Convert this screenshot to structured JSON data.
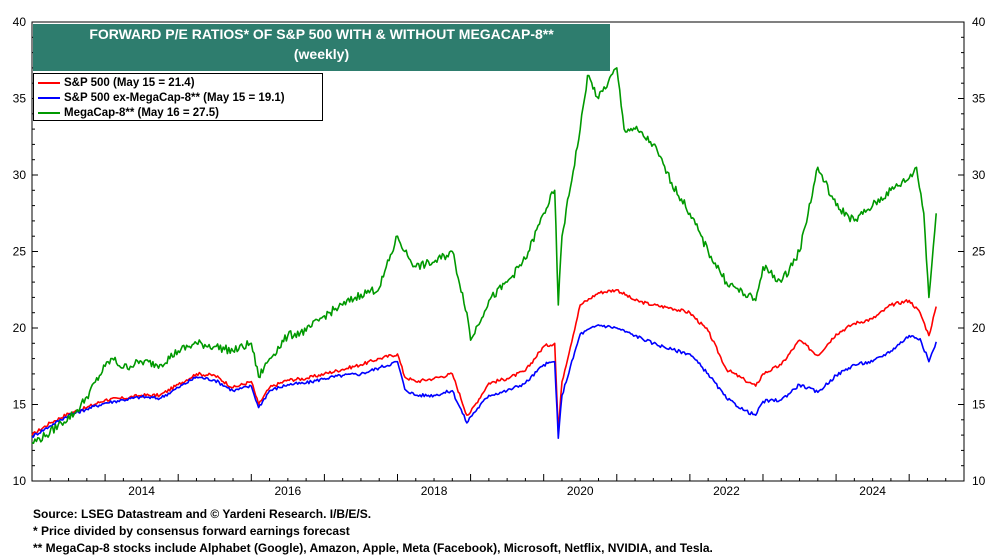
{
  "chart_data": {
    "type": "line",
    "title": "FORWARD P/E RATIOS* OF S&P 500 WITH & WITHOUT  MEGACAP-8**",
    "subtitle": "(weekly)",
    "xlabel": "",
    "ylabel": "",
    "xlim": [
      2013.0,
      2025.75
    ],
    "ylim": [
      10,
      40
    ],
    "y_ticks": [
      10,
      15,
      20,
      25,
      30,
      35,
      40
    ],
    "x_tick_labels": [
      "2014",
      "2016",
      "2018",
      "2020",
      "2022",
      "2024"
    ],
    "grid": false,
    "legend_position": "top-left",
    "series": [
      {
        "name": "S&P 500 (May 15 = 21.4)",
        "color": "#ff0000",
        "x": [
          2013.0,
          2013.25,
          2013.5,
          2013.75,
          2014.0,
          2014.25,
          2014.5,
          2014.75,
          2015.0,
          2015.25,
          2015.5,
          2015.75,
          2016.0,
          2016.1,
          2016.25,
          2016.5,
          2016.75,
          2017.0,
          2017.25,
          2017.5,
          2017.75,
          2018.0,
          2018.1,
          2018.25,
          2018.5,
          2018.75,
          2018.95,
          2019.0,
          2019.25,
          2019.5,
          2019.75,
          2020.0,
          2020.15,
          2020.2,
          2020.25,
          2020.5,
          2020.75,
          2021.0,
          2021.25,
          2021.5,
          2021.75,
          2022.0,
          2022.25,
          2022.5,
          2022.75,
          2022.9,
          2023.0,
          2023.25,
          2023.5,
          2023.75,
          2024.0,
          2024.25,
          2024.5,
          2024.75,
          2025.0,
          2025.15,
          2025.27,
          2025.37
        ],
        "y": [
          13.0,
          13.8,
          14.4,
          14.8,
          15.3,
          15.4,
          15.6,
          15.6,
          16.3,
          17.0,
          16.9,
          16.1,
          16.5,
          15.0,
          16.1,
          16.6,
          16.7,
          17.0,
          17.3,
          17.6,
          18.0,
          18.3,
          16.8,
          16.5,
          16.7,
          17.0,
          14.3,
          14.5,
          16.4,
          16.7,
          17.2,
          18.8,
          19.0,
          13.2,
          16.5,
          21.5,
          22.3,
          22.5,
          21.8,
          21.5,
          21.3,
          21.0,
          19.8,
          17.3,
          16.6,
          16.2,
          17.0,
          17.6,
          19.2,
          18.2,
          19.6,
          20.3,
          20.6,
          21.5,
          21.8,
          21.0,
          19.5,
          21.4
        ]
      },
      {
        "name": "S&P 500 ex-MegaCap-8** (May 15 = 19.1)",
        "color": "#0000ff",
        "x": [
          2013.0,
          2013.25,
          2013.5,
          2013.75,
          2014.0,
          2014.25,
          2014.5,
          2014.75,
          2015.0,
          2015.25,
          2015.5,
          2015.75,
          2016.0,
          2016.1,
          2016.25,
          2016.5,
          2016.75,
          2017.0,
          2017.25,
          2017.5,
          2017.75,
          2018.0,
          2018.1,
          2018.25,
          2018.5,
          2018.75,
          2018.95,
          2019.0,
          2019.25,
          2019.5,
          2019.75,
          2020.0,
          2020.15,
          2020.2,
          2020.25,
          2020.5,
          2020.75,
          2021.0,
          2021.25,
          2021.5,
          2021.75,
          2022.0,
          2022.25,
          2022.5,
          2022.75,
          2022.9,
          2023.0,
          2023.25,
          2023.5,
          2023.75,
          2024.0,
          2024.25,
          2024.5,
          2024.75,
          2025.0,
          2025.15,
          2025.27,
          2025.37
        ],
        "y": [
          12.9,
          13.6,
          14.3,
          14.7,
          15.1,
          15.3,
          15.5,
          15.4,
          16.1,
          16.8,
          16.6,
          15.9,
          16.2,
          14.8,
          15.9,
          16.3,
          16.4,
          16.7,
          16.9,
          17.0,
          17.4,
          17.8,
          16.0,
          15.6,
          15.6,
          15.9,
          13.8,
          14.2,
          15.6,
          15.9,
          16.4,
          17.6,
          17.8,
          12.8,
          15.6,
          19.6,
          20.2,
          20.0,
          19.5,
          19.0,
          18.6,
          18.3,
          17.0,
          15.4,
          14.6,
          14.3,
          15.2,
          15.3,
          16.3,
          15.8,
          16.9,
          17.6,
          17.8,
          18.5,
          19.5,
          19.3,
          17.8,
          19.1
        ]
      },
      {
        "name": "MegaCap-8** (May 16 = 27.5)",
        "color": "#009900",
        "x": [
          2013.0,
          2013.2,
          2013.4,
          2013.6,
          2013.75,
          2014.0,
          2014.1,
          2014.25,
          2014.5,
          2014.75,
          2015.0,
          2015.25,
          2015.5,
          2015.75,
          2016.0,
          2016.1,
          2016.25,
          2016.5,
          2016.75,
          2017.0,
          2017.25,
          2017.5,
          2017.75,
          2018.0,
          2018.1,
          2018.25,
          2018.5,
          2018.75,
          2018.95,
          2019.0,
          2019.25,
          2019.5,
          2019.75,
          2020.0,
          2020.15,
          2020.2,
          2020.25,
          2020.5,
          2020.6,
          2020.75,
          2021.0,
          2021.1,
          2021.25,
          2021.5,
          2021.75,
          2022.0,
          2022.25,
          2022.5,
          2022.75,
          2022.9,
          2023.0,
          2023.25,
          2023.5,
          2023.75,
          2024.0,
          2024.25,
          2024.5,
          2024.75,
          2025.0,
          2025.1,
          2025.2,
          2025.27,
          2025.37
        ],
        "y": [
          12.5,
          13.0,
          13.8,
          14.5,
          15.5,
          17.5,
          18.0,
          17.4,
          17.8,
          17.6,
          18.5,
          19.0,
          18.8,
          18.5,
          19.0,
          16.8,
          18.0,
          19.5,
          19.8,
          20.8,
          21.5,
          22.2,
          22.6,
          26.0,
          25.0,
          24.0,
          24.3,
          25.0,
          21.0,
          19.2,
          21.8,
          23.0,
          24.5,
          27.5,
          29.0,
          21.5,
          26.0,
          33.0,
          36.5,
          35.0,
          37.0,
          33.0,
          33.0,
          32.0,
          29.5,
          27.5,
          25.0,
          23.0,
          22.2,
          21.8,
          24.0,
          23.0,
          25.0,
          30.5,
          28.0,
          27.0,
          28.0,
          29.0,
          29.8,
          30.5,
          27.5,
          22.0,
          27.5
        ]
      }
    ]
  },
  "notes": {
    "source": "Source: LSEG Datastream and © Yardeni Research. I/B/E/S.",
    "note1": "* Price divided by consensus forward earnings forecast",
    "note2": "** MegaCap-8 stocks include Alphabet (Google), Amazon, Apple, Meta (Facebook), Microsoft, Netflix, NVIDIA, and Tesla."
  }
}
